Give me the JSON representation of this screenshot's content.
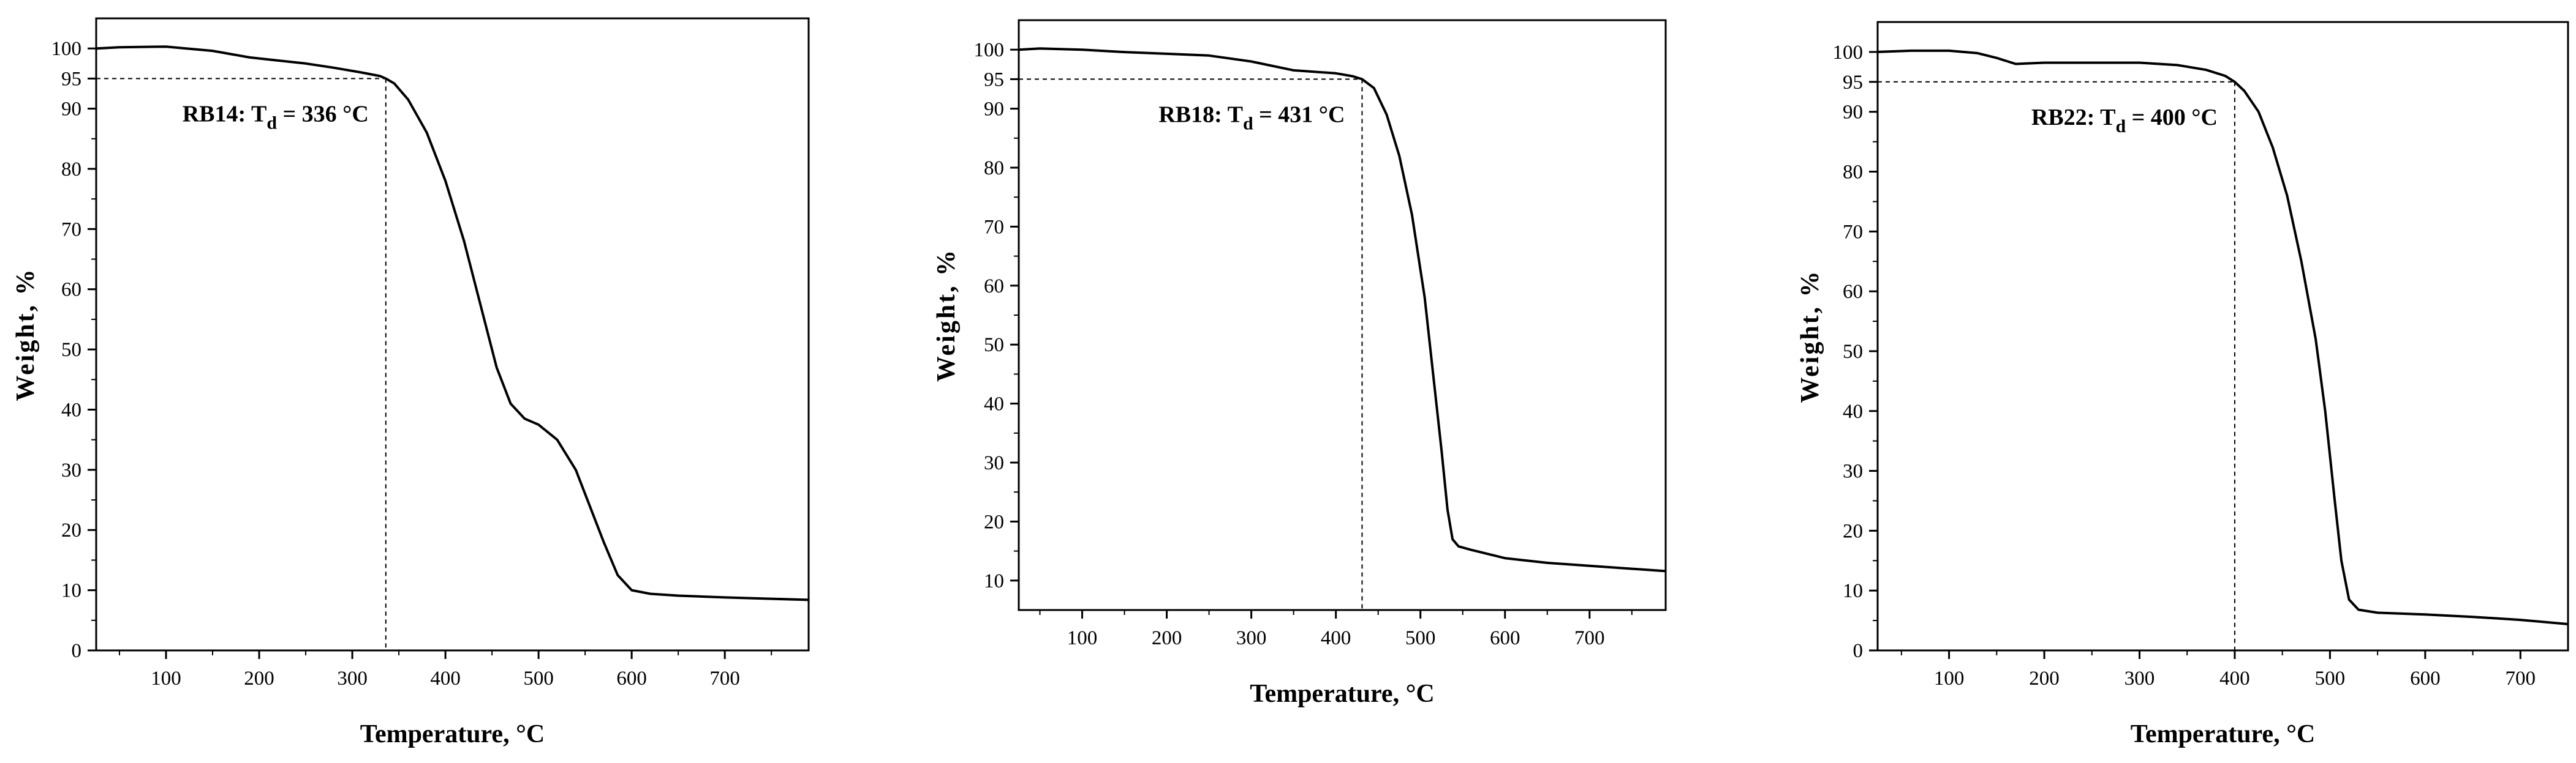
{
  "chart_data": [
    {
      "type": "line",
      "xlabel": "Temperature, °C",
      "ylabel": "Weight, %",
      "xlim": [
        25,
        790
      ],
      "ylim": [
        0,
        105
      ],
      "xticks": [
        "100",
        "200",
        "300",
        "400",
        "500",
        "600",
        "700"
      ],
      "yticks": [
        "0",
        "10",
        "20",
        "30",
        "40",
        "50",
        "60",
        "70",
        "80",
        "90",
        "95",
        "100"
      ],
      "annotation": {
        "sample": "RB14",
        "label_prefix": "RB14: T",
        "label_sub": "d",
        "label_suffix": " = 336 °C",
        "td": 336,
        "weight_at_td": 95
      },
      "series": [
        {
          "x": [
            25,
            50,
            100,
            150,
            190,
            220,
            250,
            280,
            310,
            330,
            336,
            345,
            360,
            380,
            400,
            420,
            440,
            455,
            470,
            485,
            500,
            520,
            540,
            555,
            570,
            585,
            600,
            620,
            650,
            700,
            790
          ],
          "y": [
            100,
            100.2,
            100.3,
            99.6,
            98.5,
            98,
            97.5,
            96.8,
            96,
            95.4,
            95,
            94.2,
            91.5,
            86,
            78,
            68,
            56,
            47,
            41,
            38.5,
            37.5,
            35,
            30,
            24,
            18,
            12.5,
            10,
            9.4,
            9.1,
            8.8,
            8.4
          ]
        }
      ]
    },
    {
      "type": "line",
      "xlabel": "Temperature, °C",
      "ylabel": "Weight, %",
      "xlim": [
        25,
        790
      ],
      "ylim": [
        5,
        105
      ],
      "xticks": [
        "100",
        "200",
        "300",
        "400",
        "500",
        "600",
        "700"
      ],
      "yticks": [
        "10",
        "20",
        "30",
        "40",
        "50",
        "60",
        "70",
        "80",
        "90",
        "95",
        "100"
      ],
      "annotation": {
        "sample": "RB18",
        "label_prefix": "RB18: T",
        "label_sub": "d",
        "label_suffix": " = 431 °C",
        "td": 431,
        "weight_at_td": 95
      },
      "series": [
        {
          "x": [
            25,
            50,
            100,
            150,
            200,
            250,
            300,
            350,
            400,
            420,
            431,
            445,
            460,
            475,
            490,
            505,
            515,
            525,
            532,
            538,
            545,
            560,
            580,
            600,
            650,
            700,
            790
          ],
          "y": [
            100,
            100.2,
            100,
            99.6,
            99.3,
            99,
            98,
            96.5,
            96,
            95.5,
            95,
            93.5,
            89,
            82,
            72,
            58,
            45,
            32,
            22,
            17,
            15.8,
            15.2,
            14.5,
            13.8,
            13,
            12.5,
            11.6
          ]
        }
      ]
    },
    {
      "type": "line",
      "xlabel": "Temperature, °C",
      "ylabel": "Weight, %",
      "xlim": [
        25,
        750
      ],
      "ylim": [
        0,
        105
      ],
      "xticks": [
        "100",
        "200",
        "300",
        "400",
        "500",
        "600",
        "700"
      ],
      "yticks": [
        "0",
        "10",
        "20",
        "30",
        "40",
        "50",
        "60",
        "70",
        "80",
        "90",
        "95",
        "100"
      ],
      "annotation": {
        "sample": "RB22",
        "label_prefix": "RB22: T",
        "label_sub": "d",
        "label_suffix": " = 400 °C",
        "td": 400,
        "weight_at_td": 95
      },
      "series": [
        {
          "x": [
            25,
            60,
            100,
            130,
            150,
            160,
            170,
            200,
            250,
            300,
            340,
            370,
            390,
            400,
            410,
            425,
            440,
            455,
            470,
            485,
            495,
            505,
            512,
            520,
            530,
            550,
            600,
            650,
            700,
            750
          ],
          "y": [
            100,
            100.2,
            100.2,
            99.8,
            99,
            98.5,
            98,
            98.2,
            98.2,
            98.2,
            97.8,
            97,
            96,
            95,
            93.5,
            90,
            84,
            76,
            65,
            52,
            40,
            25,
            15,
            8.5,
            6.8,
            6.3,
            6,
            5.6,
            5.1,
            4.4
          ]
        }
      ]
    }
  ]
}
